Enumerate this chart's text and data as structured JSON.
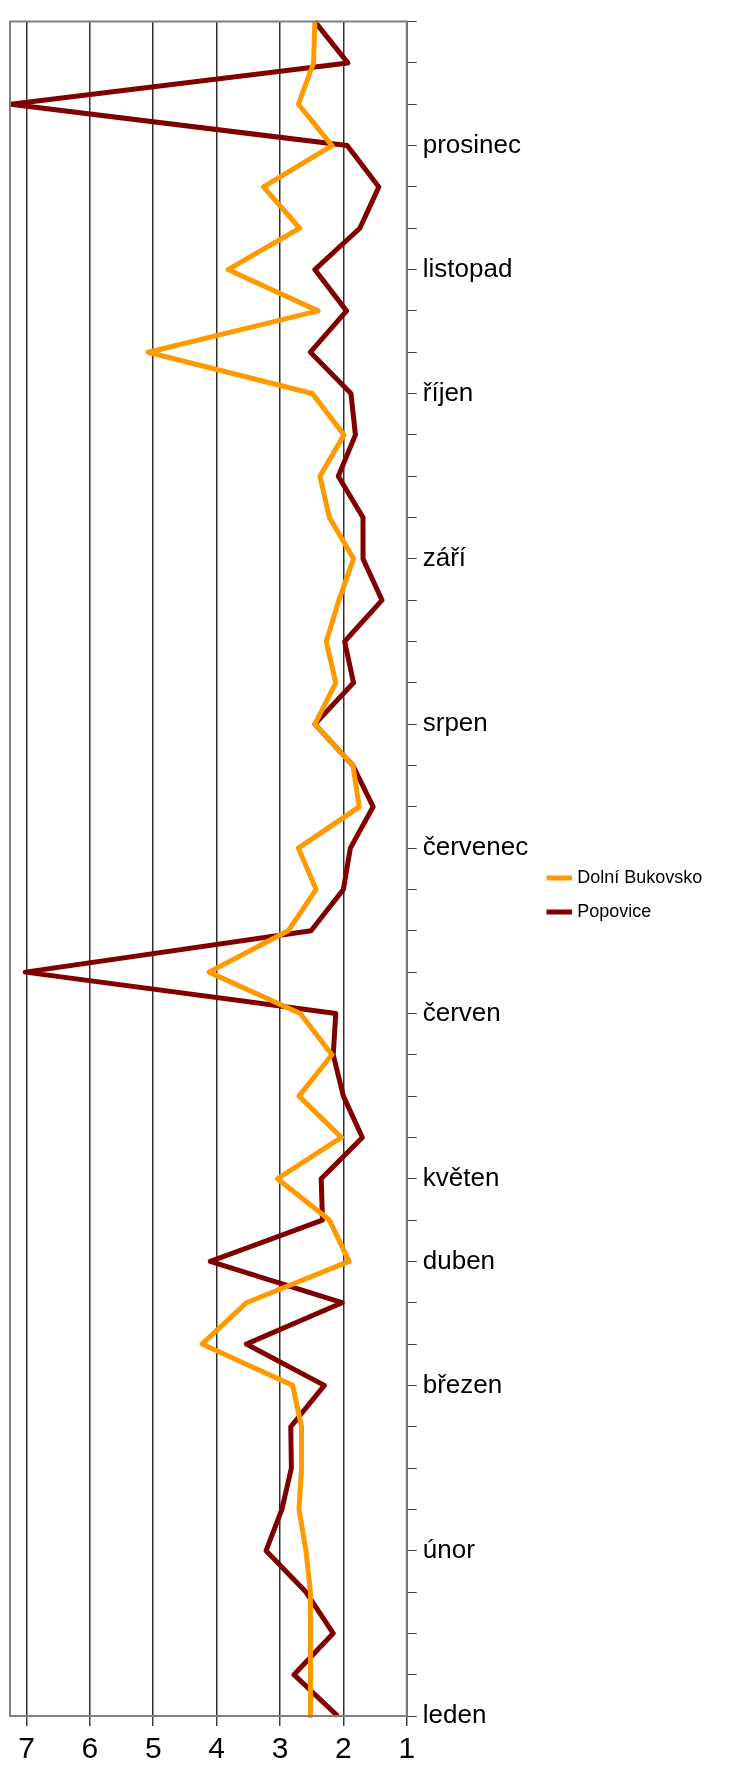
{
  "chart_data": {
    "type": "line",
    "orientation": "horizontal",
    "categories": [
      null,
      null,
      null,
      "prosinec",
      null,
      null,
      "listopad",
      null,
      null,
      "říjen",
      null,
      null,
      null,
      "září",
      null,
      null,
      null,
      "srpen",
      null,
      null,
      "červenec",
      null,
      null,
      null,
      "červen",
      null,
      null,
      null,
      "květen",
      null,
      "duben",
      null,
      null,
      "březen",
      null,
      null,
      null,
      "únor",
      null,
      null,
      null,
      "leden"
    ],
    "series": [
      {
        "name": "Dolní Bukovsko",
        "color": "#ff9900",
        "values": [
          2.45,
          2.47,
          2.71,
          2.18,
          3.26,
          2.69,
          3.82,
          2.4,
          5.08,
          2.49,
          1.99,
          2.37,
          2.22,
          1.84,
          2.07,
          2.27,
          2.12,
          2.45,
          1.85,
          1.75,
          2.71,
          2.43,
          2.87,
          4.12,
          2.68,
          2.18,
          2.7,
          2.03,
          3.04,
          2.22,
          1.91,
          3.53,
          4.23,
          2.8,
          2.66,
          2.66,
          2.7,
          2.59,
          2.52,
          2.52,
          2.52,
          2.52
        ]
      },
      {
        "name": "Popovice",
        "color": "#800000",
        "values": [
          2.45,
          1.93,
          7.25,
          1.94,
          1.44,
          1.74,
          2.45,
          1.95,
          2.52,
          1.88,
          1.81,
          2.08,
          1.69,
          1.69,
          1.39,
          1.98,
          1.84,
          2.45,
          1.85,
          1.53,
          1.89,
          2.0,
          2.51,
          7.02,
          2.12,
          2.16,
          2.0,
          1.7,
          2.35,
          2.33,
          4.1,
          2.02,
          3.53,
          2.3,
          2.83,
          2.82,
          2.97,
          3.22,
          2.59,
          2.16,
          2.78,
          2.09
        ]
      }
    ],
    "xlim": [
      7.26,
      1
    ],
    "xticks": [
      7,
      6,
      5,
      4,
      3,
      2,
      1
    ],
    "grid": "x",
    "legend": "right",
    "marker": "none"
  }
}
